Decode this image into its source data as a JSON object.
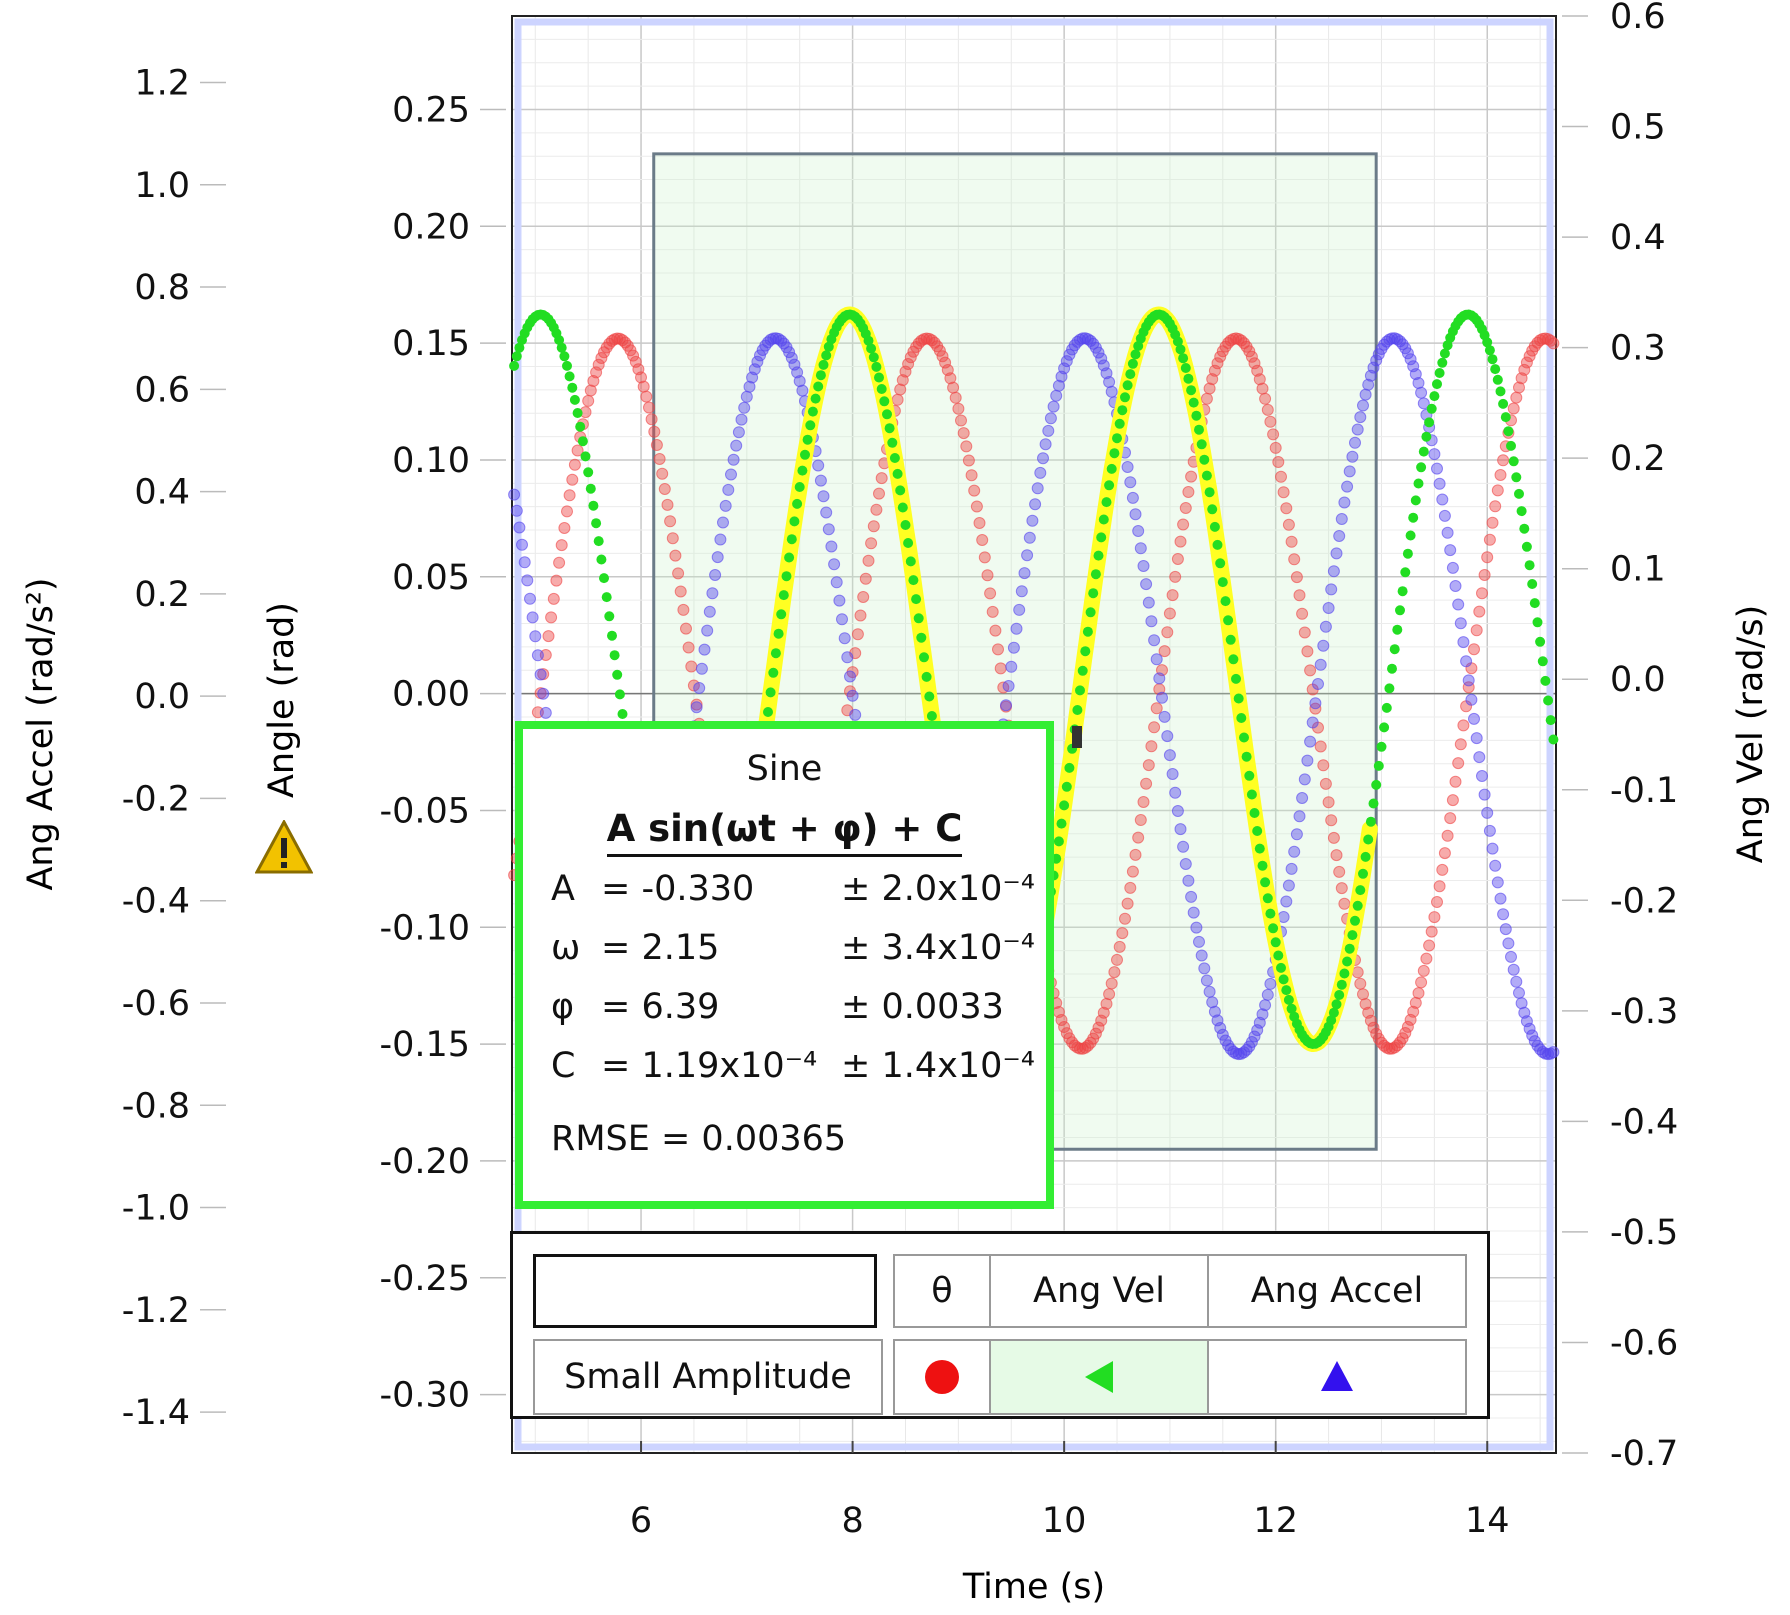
{
  "chart_data": {
    "type": "scatter",
    "title": "",
    "xlabel": "Time (s)",
    "ylabel_left": "Angle (rad)",
    "ylabel_far_left": "Ang Accel (rad/s²)",
    "ylabel_right": "Ang Vel (rad/s)",
    "xlim": [
      4.78,
      14.65
    ],
    "xticks": [
      "6",
      "8",
      "10",
      "12",
      "14"
    ],
    "ylim_angle": [
      -0.325,
      0.29
    ],
    "yticks_angle": [
      "0.25",
      "0.20",
      "0.15",
      "0.10",
      "0.05",
      "0.00",
      "-0.05",
      "-0.10",
      "-0.15",
      "-0.20",
      "-0.25",
      "-0.30"
    ],
    "ylim_vel": [
      -0.7,
      0.6
    ],
    "yticks_vel": [
      "0.6",
      "0.5",
      "0.4",
      "0.3",
      "0.2",
      "0.1",
      "0.0",
      "-0.1",
      "-0.2",
      "-0.3",
      "-0.4",
      "-0.5",
      "-0.6",
      "-0.7"
    ],
    "ylim_accel": [
      -1.48,
      1.33
    ],
    "yticks_accel": [
      "1.2",
      "1.0",
      "0.8",
      "0.6",
      "0.4",
      "0.2",
      "0.0",
      "-0.2",
      "-0.4",
      "-0.6",
      "-0.8",
      "-1.0",
      "-1.2",
      "-1.4"
    ],
    "grid": true,
    "selection_range": {
      "x": [
        6.12,
        12.95
      ],
      "y_angle": [
        -0.195,
        0.231
      ]
    },
    "series": [
      {
        "name": "θ",
        "axis": "angle",
        "color": "#ee4444",
        "marker": "circle",
        "amplitude": 0.152,
        "omega": 2.15,
        "peak_t": 5.78
      },
      {
        "name": "Ang Vel",
        "axis": "vel",
        "color": "#22dd22",
        "marker": "triangle-left",
        "amplitude": 0.33,
        "omega": 2.15,
        "peak_t": 5.05
      },
      {
        "name": "Ang Accel",
        "axis": "accel",
        "color": "#5544ee",
        "marker": "triangle-up",
        "amplitude": 0.7,
        "omega": 2.15,
        "peak_t": 7.27
      }
    ],
    "fit": {
      "title": "Sine",
      "formula": "A sin(ωt + φ) + C",
      "params": [
        {
          "name": "A",
          "value": "= -0.330",
          "error": "± 2.0x10⁻⁴"
        },
        {
          "name": "ω",
          "value": "= 2.15",
          "error": "± 3.4x10⁻⁴"
        },
        {
          "name": "φ",
          "value": "= 6.39",
          "error": "± 0.0033"
        },
        {
          "name": "C",
          "value": "= 1.19x10⁻⁴",
          "error": "± 1.4x10⁻⁴"
        }
      ],
      "rmse": "RMSE = 0.00365",
      "range": [
        6.12,
        12.95
      ],
      "color": "#ffff22"
    },
    "legend": {
      "run_name": "Small Amplitude",
      "columns": [
        "θ",
        "Ang Vel",
        "Ang Accel"
      ]
    }
  }
}
